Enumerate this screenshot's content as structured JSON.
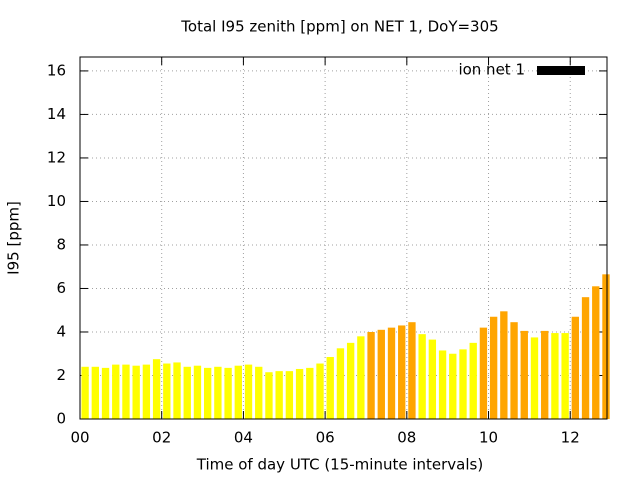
{
  "chart_data": {
    "type": "bar",
    "title": "Total I95 zenith [ppm] on NET 1, DoY=305",
    "x_label": "Time of day UTC (15-minute intervals)",
    "y_label": "I95 [ppm]",
    "x": [
      0.125,
      0.375,
      0.625,
      0.875,
      1.125,
      1.375,
      1.625,
      1.875,
      2.125,
      2.375,
      2.625,
      2.875,
      3.125,
      3.375,
      3.625,
      3.875,
      4.125,
      4.375,
      4.625,
      4.875,
      5.125,
      5.375,
      5.625,
      5.875,
      6.125,
      6.375,
      6.625,
      6.875,
      7.125,
      7.375,
      7.625,
      7.875,
      8.125,
      8.375,
      8.625,
      8.875,
      9.125,
      9.375,
      9.625,
      9.875,
      10.125,
      10.375,
      10.625,
      10.875,
      11.125,
      11.375,
      11.625,
      11.875,
      12.125,
      12.375,
      12.625,
      12.875
    ],
    "values": [
      2.4,
      2.4,
      2.35,
      2.5,
      2.5,
      2.45,
      2.5,
      2.75,
      2.55,
      2.6,
      2.4,
      2.45,
      2.35,
      2.4,
      2.35,
      2.45,
      2.5,
      2.4,
      2.15,
      2.2,
      2.2,
      2.3,
      2.35,
      2.55,
      2.85,
      3.25,
      3.5,
      3.8,
      4.0,
      4.1,
      4.2,
      4.3,
      4.45,
      3.9,
      3.65,
      3.15,
      3.0,
      3.2,
      3.5,
      4.2,
      4.7,
      4.95,
      4.45,
      4.05,
      3.75,
      4.05,
      3.95,
      3.95,
      4.7,
      5.6,
      6.1,
      6.65
    ],
    "bar_colors": [
      "#ffff00",
      "#ffff00",
      "#ffff00",
      "#ffff00",
      "#ffff00",
      "#ffff00",
      "#ffff00",
      "#ffff00",
      "#ffff00",
      "#ffff00",
      "#ffff00",
      "#ffff00",
      "#ffff00",
      "#ffff00",
      "#ffff00",
      "#ffff00",
      "#ffff00",
      "#ffff00",
      "#ffff00",
      "#ffff00",
      "#ffff00",
      "#ffff00",
      "#ffff00",
      "#ffff00",
      "#ffff00",
      "#ffff00",
      "#ffff00",
      "#ffff00",
      "#ffa500",
      "#ffa500",
      "#ffa500",
      "#ffa500",
      "#ffa500",
      "#ffff00",
      "#ffff00",
      "#ffff00",
      "#ffff00",
      "#ffff00",
      "#ffff00",
      "#ffa500",
      "#ffa500",
      "#ffa500",
      "#ffa500",
      "#ffa500",
      "#ffff00",
      "#ffa500",
      "#ffff00",
      "#ffff00",
      "#ffa500",
      "#ffa500",
      "#ffa500",
      "#ffa500"
    ],
    "bar_width": 0.18,
    "legend": {
      "label": "ion net 1",
      "color": "#000000",
      "position": "top-right"
    },
    "xlim": [
      0,
      12.9
    ],
    "xticks": [
      {
        "value": 0,
        "label": "00"
      },
      {
        "value": 2,
        "label": "02"
      },
      {
        "value": 4,
        "label": "04"
      },
      {
        "value": 6,
        "label": "06"
      },
      {
        "value": 8,
        "label": "08"
      },
      10,
      12
    ],
    "ylim": [
      0,
      16.64
    ],
    "yticks": [
      0,
      2,
      4,
      6,
      8,
      10,
      12,
      14,
      16
    ],
    "grid": true
  }
}
